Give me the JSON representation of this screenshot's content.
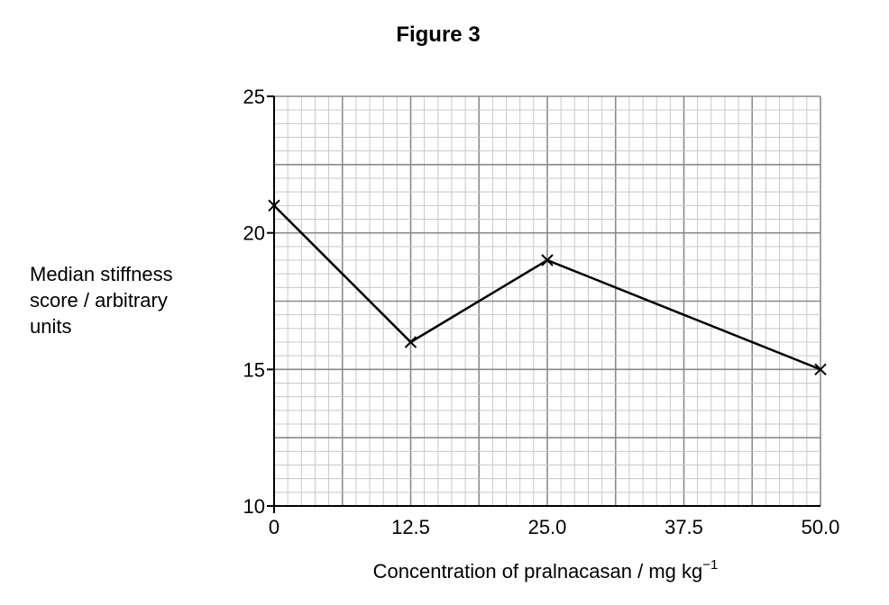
{
  "chart_data": {
    "type": "line",
    "title": "Figure 3",
    "xlabel": "Concentration of pralnacasan / mg kg",
    "xlabel_superscript": "−1",
    "ylabel_lines": [
      "Median stiffness",
      "score / arbitrary",
      "units"
    ],
    "xlim": [
      0,
      50
    ],
    "ylim": [
      10,
      25
    ],
    "x_ticks": [
      "0",
      "12.5",
      "25.0",
      "37.5",
      "50.0"
    ],
    "y_ticks": [
      "10",
      "15",
      "20",
      "25"
    ],
    "grid": true,
    "marker": "x",
    "series": [
      {
        "x": [
          0,
          12.5,
          25.0,
          50.0
        ],
        "y": [
          21,
          16,
          19,
          15
        ]
      }
    ],
    "colors": {
      "line": "#000000",
      "grid_minor": "#c8c8c8",
      "grid_major": "#8a8a8a"
    }
  }
}
